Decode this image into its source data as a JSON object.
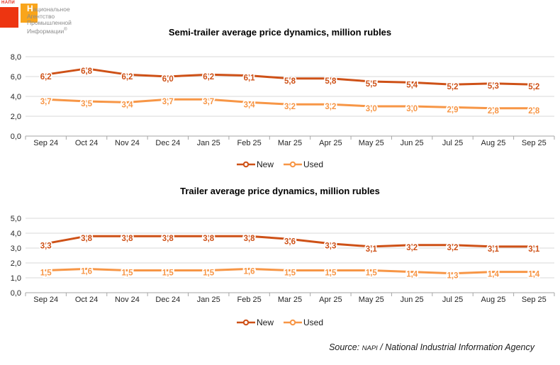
{
  "logo": {
    "brand_tiny": "НАПИ",
    "line1_initial": "Н",
    "line1_rest": "ациональное",
    "line2": "Агентство",
    "line3": "Промышленной",
    "line4": "Информации",
    "registered": "®",
    "red_color": "#ED3511",
    "orange_color": "#F9A51B"
  },
  "source": {
    "prefix": "Source: ",
    "agency_abbr": "NAPI",
    "rest": " / National Industrial Information Agency"
  },
  "colors": {
    "new_series": "#CE5117",
    "used_series": "#F79646",
    "gridline": "#D9D9D9",
    "axis": "#A6A6A6"
  },
  "chart_data": [
    {
      "type": "line",
      "title": "Semi-trailer average price dynamics, million rubles",
      "categories": [
        "Sep 24",
        "Oct 24",
        "Nov 24",
        "Dec 24",
        "Jan 25",
        "Feb 25",
        "Mar 25",
        "Apr 25",
        "May 25",
        "Jun 25",
        "Jul 25",
        "Aug 25",
        "Sep 25"
      ],
      "ylim": [
        0,
        8
      ],
      "y_ticks": [
        "0,0",
        "2,0",
        "4,0",
        "6,0",
        "8,0"
      ],
      "grid": true,
      "legend_position": "bottom",
      "series": [
        {
          "name": "New",
          "color": "#CE5117",
          "values": [
            6.2,
            6.8,
            6.2,
            6.0,
            6.2,
            6.1,
            5.8,
            5.8,
            5.5,
            5.4,
            5.2,
            5.3,
            5.2
          ],
          "labels": [
            "6,2",
            "6,8",
            "6,2",
            "6,0",
            "6,2",
            "6,1",
            "5,8",
            "5,8",
            "5,5",
            "5,4",
            "5,2",
            "5,3",
            "5,2"
          ]
        },
        {
          "name": "Used",
          "color": "#F79646",
          "values": [
            3.7,
            3.5,
            3.4,
            3.7,
            3.7,
            3.4,
            3.2,
            3.2,
            3.0,
            3.0,
            2.9,
            2.8,
            2.8
          ],
          "labels": [
            "3,7",
            "3,5",
            "3,4",
            "3,7",
            "3,7",
            "3,4",
            "3,2",
            "3,2",
            "3,0",
            "3,0",
            "2,9",
            "2,8",
            "2,8"
          ]
        }
      ]
    },
    {
      "type": "line",
      "title": "Trailer average price dynamics, million rubles",
      "categories": [
        "Sep 24",
        "Oct 24",
        "Nov 24",
        "Dec 24",
        "Jan 25",
        "Feb 25",
        "Mar 25",
        "Apr 25",
        "May 25",
        "Jun 25",
        "Jul 25",
        "Aug 25",
        "Sep 25"
      ],
      "ylim": [
        0,
        5
      ],
      "y_ticks": [
        "0,0",
        "1,0",
        "2,0",
        "3,0",
        "4,0",
        "5,0"
      ],
      "grid": true,
      "legend_position": "bottom",
      "series": [
        {
          "name": "New",
          "color": "#CE5117",
          "values": [
            3.3,
            3.8,
            3.8,
            3.8,
            3.8,
            3.8,
            3.6,
            3.3,
            3.1,
            3.2,
            3.2,
            3.1,
            3.1
          ],
          "labels": [
            "3,3",
            "3,8",
            "3,8",
            "3,8",
            "3,8",
            "3,8",
            "3,6",
            "3,3",
            "3,1",
            "3,2",
            "3,2",
            "3,1",
            "3,1"
          ]
        },
        {
          "name": "Used",
          "color": "#F79646",
          "values": [
            1.5,
            1.6,
            1.5,
            1.5,
            1.5,
            1.6,
            1.5,
            1.5,
            1.5,
            1.4,
            1.3,
            1.4,
            1.4
          ],
          "labels": [
            "1,5",
            "1,6",
            "1,5",
            "1,5",
            "1,5",
            "1,6",
            "1,5",
            "1,5",
            "1,5",
            "1,4",
            "1,3",
            "1,4",
            "1,4"
          ]
        }
      ]
    }
  ]
}
